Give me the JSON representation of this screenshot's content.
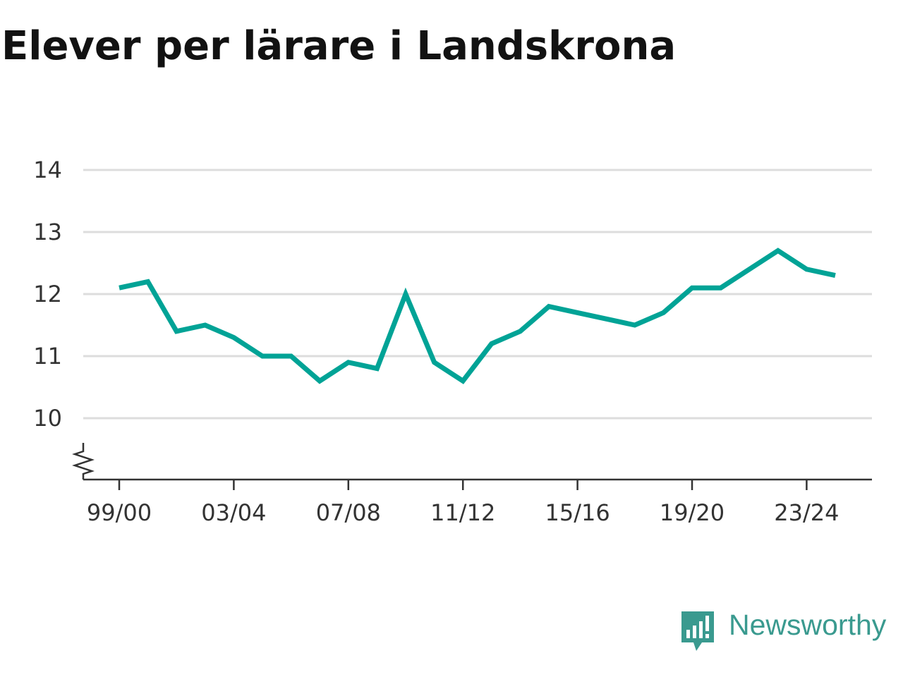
{
  "title": "Elever per lärare i Landskrona",
  "brand": {
    "name": "Newsworthy",
    "icon": "newsworthy-logo-icon",
    "color": "#3a9a8f"
  },
  "chart_data": {
    "type": "line",
    "title": "Elever per lärare i Landskrona",
    "xlabel": "",
    "ylabel": "",
    "x": [
      "99/00",
      "00/01",
      "01/02",
      "02/03",
      "03/04",
      "04/05",
      "05/06",
      "06/07",
      "07/08",
      "08/09",
      "09/10",
      "10/11",
      "11/12",
      "12/13",
      "13/14",
      "14/15",
      "15/16",
      "16/17",
      "17/18",
      "18/19",
      "19/20",
      "20/21",
      "21/22",
      "22/23",
      "23/24",
      "24/25"
    ],
    "xticks": [
      "99/00",
      "03/04",
      "07/08",
      "11/12",
      "15/16",
      "19/20",
      "23/24"
    ],
    "yticks": [
      10,
      11,
      12,
      13,
      14
    ],
    "ylim": [
      9,
      14
    ],
    "axis_break": true,
    "grid": true,
    "series": [
      {
        "color": "#00a396",
        "values": [
          12.1,
          12.2,
          11.4,
          11.5,
          11.3,
          11.0,
          11.0,
          10.6,
          10.9,
          10.8,
          12.0,
          10.9,
          10.6,
          11.2,
          11.4,
          11.8,
          11.7,
          11.6,
          11.5,
          11.7,
          12.1,
          12.1,
          12.4,
          12.7,
          12.4,
          12.3
        ]
      }
    ],
    "colors": {
      "grid": "#dddddd",
      "axis": "#333333",
      "tick_text": "#333333"
    }
  }
}
